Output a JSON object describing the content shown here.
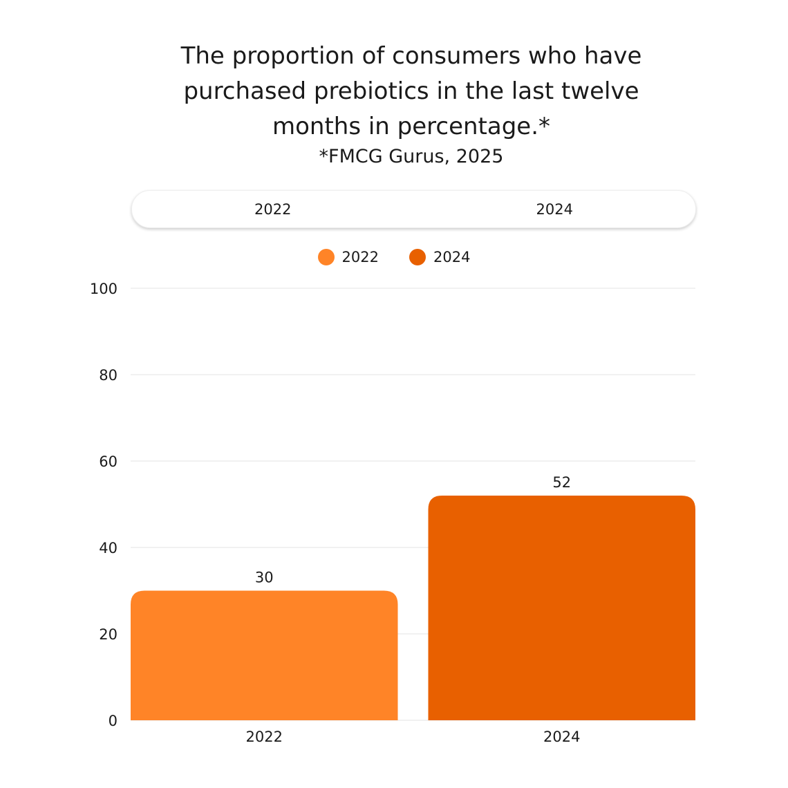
{
  "colors": {
    "2022": "#FF8427",
    "2024": "#E86000",
    "grid": "#e3e3e3"
  },
  "tabs": [
    {
      "label": "2022"
    },
    {
      "label": "2024"
    }
  ],
  "chart_data": {
    "type": "bar",
    "title": "The proportion of consumers who have purchased prebiotics in the last twelve months in percentage.*",
    "subtitle": "*FMCG Gurus, 2025",
    "categories": [
      "2022",
      "2024"
    ],
    "series": [
      {
        "name": "2022",
        "values": [
          30,
          null
        ]
      },
      {
        "name": "2024",
        "values": [
          null,
          52
        ]
      }
    ],
    "values": [
      30,
      52
    ],
    "data_labels": [
      "30",
      "52"
    ],
    "ylim": [
      0,
      100
    ],
    "yticks": [
      0,
      20,
      40,
      60,
      80,
      100
    ],
    "xlabel": "",
    "ylabel": "",
    "grid": true,
    "legend": "top-center"
  }
}
